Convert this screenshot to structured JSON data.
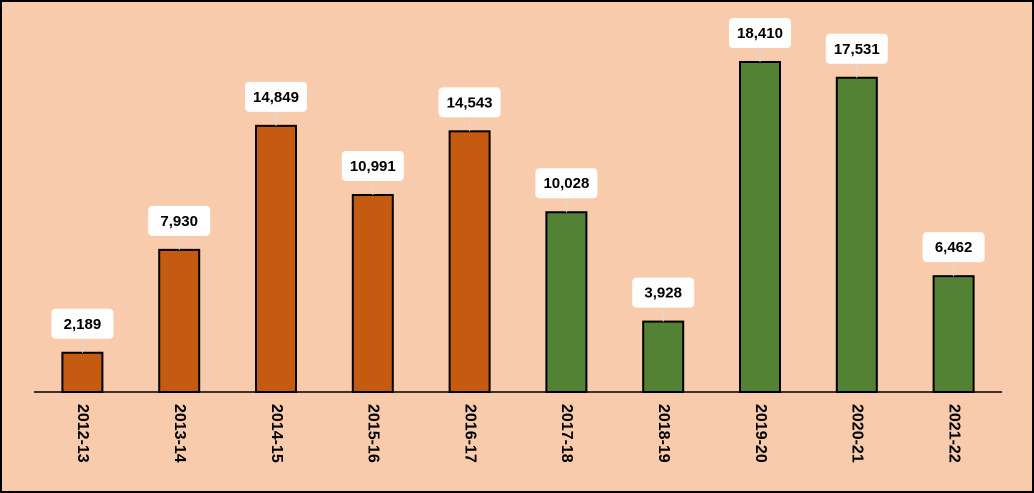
{
  "chart_data": {
    "type": "bar",
    "categories": [
      "2012-13",
      "2013-14",
      "2014-15",
      "2015-16",
      "2016-17",
      "2017-18",
      "2018-19",
      "2019-20",
      "2020-21",
      "2021-22"
    ],
    "values": [
      2189,
      7930,
      14849,
      10991,
      14543,
      10028,
      3928,
      18410,
      17531,
      6462
    ],
    "value_labels": [
      "2,189",
      "7,930",
      "14,849",
      "10,991",
      "14,543",
      "10,028",
      "3,928",
      "18,410",
      "17,531",
      "6,462"
    ],
    "bar_colors": [
      "#c55a11",
      "#c55a11",
      "#c55a11",
      "#c55a11",
      "#c55a11",
      "#548235",
      "#548235",
      "#548235",
      "#548235",
      "#548235"
    ],
    "title": "",
    "xlabel": "",
    "ylabel": "",
    "ylim": [
      0,
      20000
    ],
    "grid": false,
    "legend": "none",
    "background_color": "#f8cbad"
  }
}
